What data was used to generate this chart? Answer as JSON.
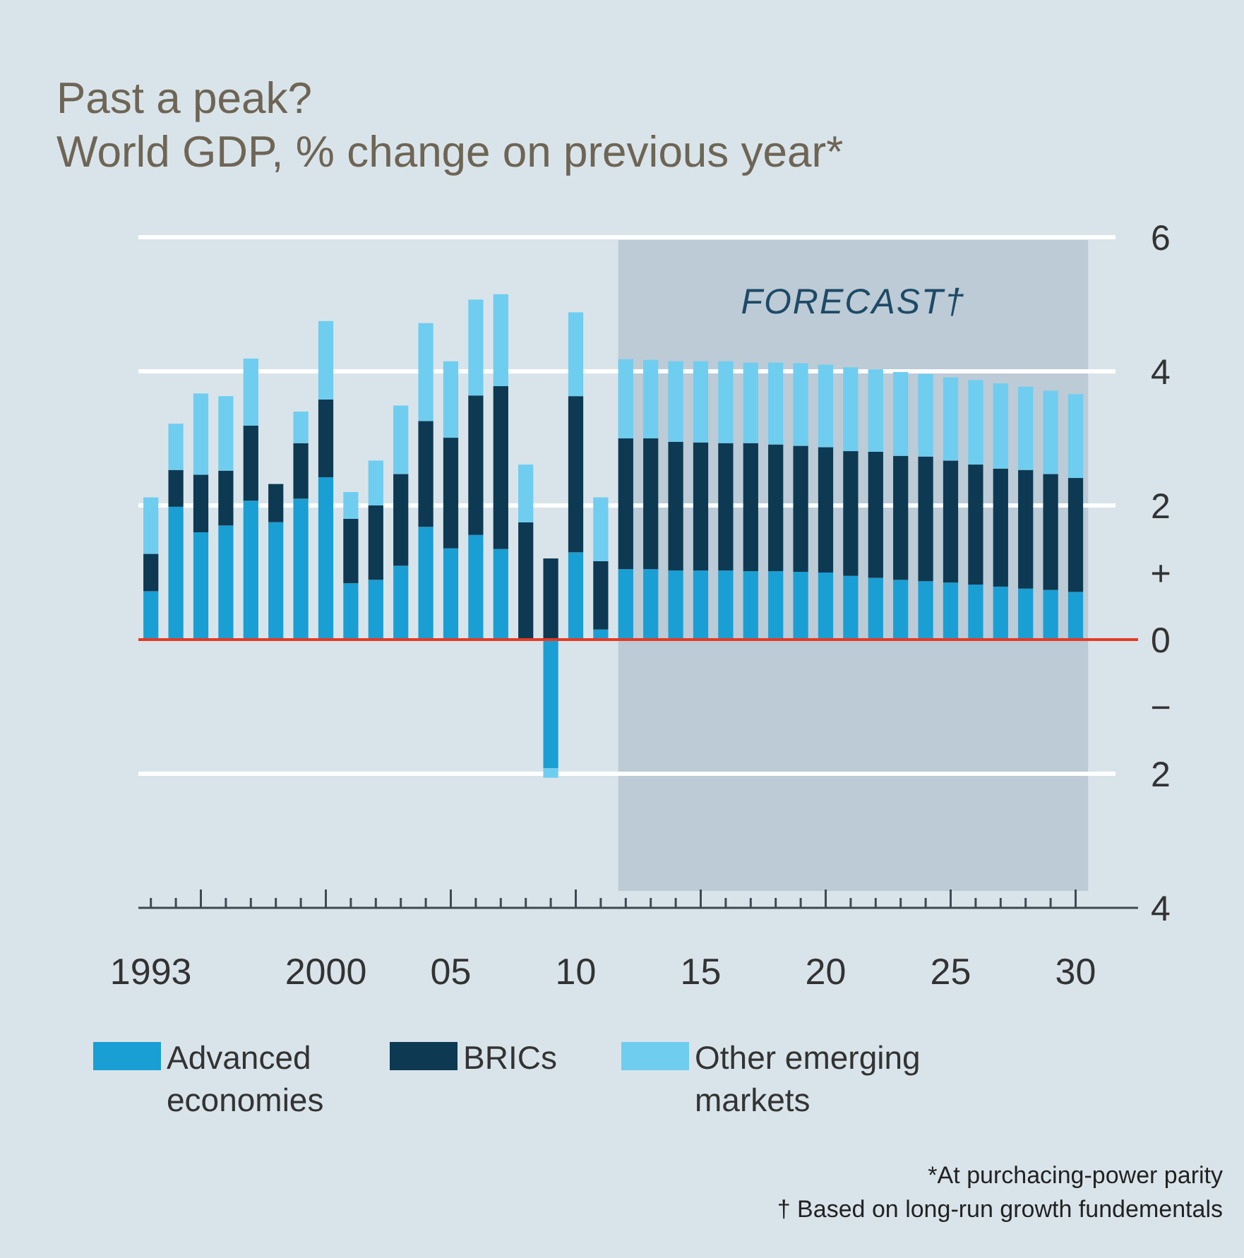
{
  "chart_data": {
    "type": "bar",
    "stacked": true,
    "title": "Past a peak?",
    "subtitle": "World GDP, % change on previous year*",
    "x": [
      1993,
      1994,
      1995,
      1996,
      1997,
      1998,
      1999,
      2000,
      2001,
      2002,
      2003,
      2004,
      2005,
      2006,
      2007,
      2008,
      2009,
      2010,
      2011,
      2012,
      2013,
      2014,
      2015,
      2016,
      2017,
      2018,
      2019,
      2020,
      2021,
      2022,
      2023,
      2024,
      2025,
      2026,
      2027,
      2028,
      2029,
      2030
    ],
    "series": [
      {
        "name": "Advanced economies",
        "color": "#1a9fd4",
        "values": [
          0.72,
          1.98,
          1.6,
          1.7,
          2.07,
          1.75,
          2.1,
          2.42,
          0.84,
          0.89,
          1.1,
          1.68,
          1.36,
          1.56,
          1.35,
          0,
          -1.92,
          1.3,
          0.15,
          1.05,
          1.05,
          1.03,
          1.03,
          1.03,
          1.02,
          1.02,
          1.01,
          1.0,
          0.95,
          0.92,
          0.89,
          0.87,
          0.85,
          0.82,
          0.79,
          0.76,
          0.74,
          0.71
        ]
      },
      {
        "name": "BRICs",
        "color": "#0d3a52",
        "values": [
          0.56,
          0.55,
          0.86,
          0.82,
          1.12,
          0.57,
          0.83,
          1.16,
          0.96,
          1.11,
          1.37,
          1.58,
          1.65,
          2.08,
          2.43,
          1.75,
          1.21,
          2.33,
          1.02,
          1.95,
          1.95,
          1.92,
          1.91,
          1.9,
          1.91,
          1.89,
          1.88,
          1.87,
          1.86,
          1.88,
          1.85,
          1.86,
          1.82,
          1.79,
          1.76,
          1.77,
          1.73,
          1.7
        ]
      },
      {
        "name": "Other emerging markets",
        "color": "#6fcdf0",
        "values": [
          0.84,
          0.69,
          1.21,
          1.11,
          1.0,
          0,
          0.47,
          1.17,
          0.4,
          0.67,
          1.02,
          1.46,
          1.14,
          1.43,
          1.37,
          0.86,
          -0.14,
          1.25,
          0.95,
          1.18,
          1.17,
          1.2,
          1.21,
          1.22,
          1.2,
          1.22,
          1.23,
          1.23,
          1.25,
          1.23,
          1.25,
          1.23,
          1.24,
          1.26,
          1.27,
          1.24,
          1.24,
          1.25
        ]
      }
    ],
    "xlim": [
      1992.5,
      2032.5
    ],
    "xticks": [
      {
        "value": 1993,
        "label": "1993"
      },
      {
        "value": 1994,
        "label": null
      },
      {
        "value": 1995,
        "label": null
      },
      {
        "value": 1996,
        "label": null
      },
      {
        "value": 1997,
        "label": null
      },
      {
        "value": 1998,
        "label": null
      },
      {
        "value": 1999,
        "label": null
      },
      {
        "value": 2000,
        "label": "2000"
      },
      {
        "value": 2001,
        "label": null
      },
      {
        "value": 2002,
        "label": null
      },
      {
        "value": 2003,
        "label": null
      },
      {
        "value": 2004,
        "label": null
      },
      {
        "value": 2005,
        "label": "05"
      },
      {
        "value": 2006,
        "label": null
      },
      {
        "value": 2007,
        "label": null
      },
      {
        "value": 2008,
        "label": null
      },
      {
        "value": 2009,
        "label": null
      },
      {
        "value": 2010,
        "label": "10"
      },
      {
        "value": 2011,
        "label": null
      },
      {
        "value": 2012,
        "label": null
      },
      {
        "value": 2013,
        "label": null
      },
      {
        "value": 2014,
        "label": null
      },
      {
        "value": 2015,
        "label": "15"
      },
      {
        "value": 2016,
        "label": null
      },
      {
        "value": 2017,
        "label": null
      },
      {
        "value": 2018,
        "label": null
      },
      {
        "value": 2019,
        "label": null
      },
      {
        "value": 2020,
        "label": "20"
      },
      {
        "value": 2021,
        "label": null
      },
      {
        "value": 2022,
        "label": null
      },
      {
        "value": 2023,
        "label": null
      },
      {
        "value": 2024,
        "label": null
      },
      {
        "value": 2025,
        "label": "25"
      },
      {
        "value": 2026,
        "label": null
      },
      {
        "value": 2027,
        "label": null
      },
      {
        "value": 2028,
        "label": null
      },
      {
        "value": 2029,
        "label": null
      },
      {
        "value": 2030,
        "label": "30"
      }
    ],
    "ylim": [
      -4,
      6
    ],
    "yticks": [
      6,
      4,
      2,
      {
        "value": 1,
        "label": "+"
      },
      0,
      {
        "value": -1,
        "label": "−"
      },
      {
        "value": -2,
        "label": "2"
      },
      {
        "value": -4,
        "label": "4"
      }
    ],
    "grid": "y",
    "legend": "bottom",
    "ref_lines": [
      {
        "axis": "y",
        "value": 0,
        "color": "#e63a24"
      }
    ],
    "bands": [
      {
        "axis": "x",
        "from": 2011.7,
        "to": 2030.5,
        "label": "FORECAST†",
        "color": "#bccbd6"
      }
    ],
    "annotations": [
      "*At purchacing-power parity",
      "† Based on long-run growth fundementals"
    ]
  }
}
